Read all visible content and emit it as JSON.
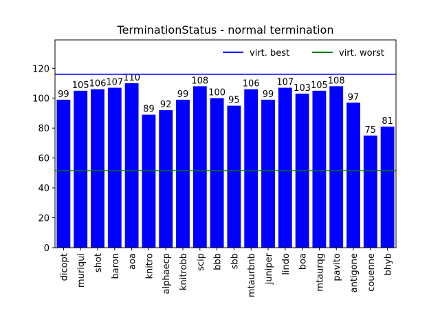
{
  "chart_data": {
    "type": "bar",
    "title": "TerminationStatus - normal termination",
    "xlabel": "",
    "ylabel": "",
    "categories": [
      "dicopt",
      "muriqui",
      "shot",
      "baron",
      "aoa",
      "knitro",
      "alphaecp",
      "knitrobb",
      "scip",
      "bbb",
      "sbb",
      "mtaurbnb",
      "juniper",
      "lindo",
      "boa",
      "mtaurqg",
      "pavito",
      "antigone",
      "couenne",
      "bhyb"
    ],
    "values": [
      99,
      105,
      106,
      107,
      110,
      89,
      92,
      99,
      108,
      100,
      95,
      106,
      99,
      107,
      103,
      105,
      108,
      97,
      75,
      81
    ],
    "ylim": [
      0,
      139
    ],
    "yticks": [
      0,
      20,
      40,
      60,
      80,
      100,
      120
    ],
    "bar_color": "#0000ff",
    "grid": false,
    "reference_lines": [
      {
        "name": "virt. best",
        "value": 116,
        "color": "#0000ff"
      },
      {
        "name": "virt. worst",
        "value": 51.5,
        "color": "#008000"
      }
    ],
    "legend": {
      "placement": "top-right",
      "entries": [
        "virt. best",
        "virt. worst"
      ]
    }
  }
}
